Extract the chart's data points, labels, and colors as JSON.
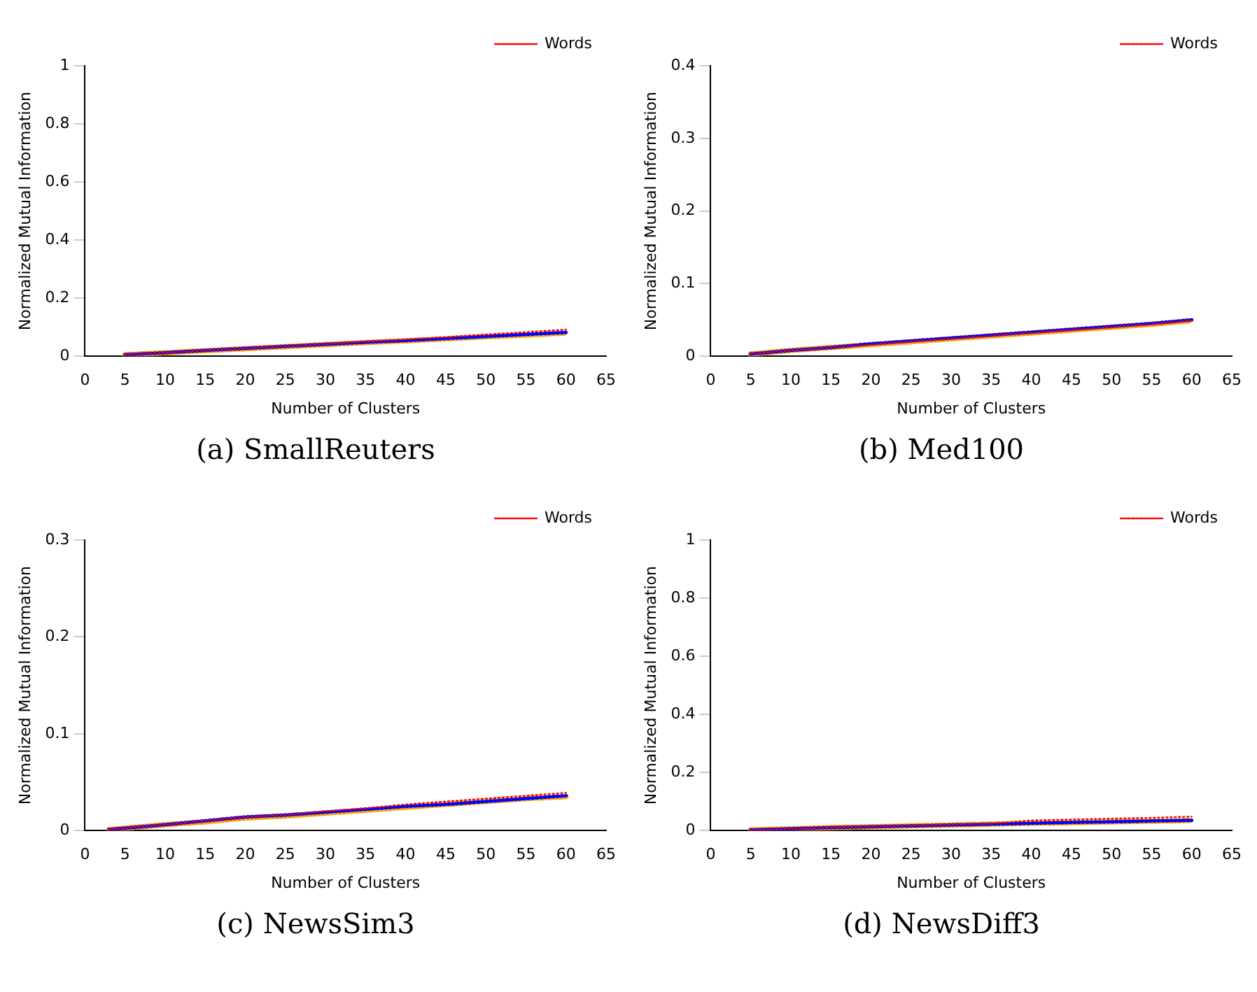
{
  "chart_data": [
    {
      "type": "line",
      "title": "(a) SmallReuters",
      "xlabel": "Number of Clusters",
      "ylabel": "Normalized Mutual Information",
      "xlim": [
        0,
        65
      ],
      "xticks": [
        0,
        5,
        10,
        15,
        20,
        25,
        30,
        35,
        40,
        45,
        50,
        55,
        60,
        65
      ],
      "ylim": [
        0,
        1
      ],
      "yticks": [
        0,
        0.2,
        0.4,
        0.6,
        0.8,
        1
      ],
      "grid": false,
      "legend": "top right",
      "marker": "none",
      "x": [
        5,
        10,
        15,
        20,
        25,
        30,
        35,
        40,
        45,
        50,
        55,
        60
      ],
      "series": [
        {
          "name": "Words",
          "color": "#ff0000",
          "line_style": "dotted",
          "values": [
            0.005,
            0.012,
            0.02,
            0.027,
            0.034,
            0.042,
            0.05,
            0.058,
            0.066,
            0.075,
            0.083,
            0.092
          ]
        },
        {
          "color": "#0000ff",
          "line_style": "dotted",
          "values": [
            0.005,
            0.012,
            0.02,
            0.027,
            0.034,
            0.041,
            0.048,
            0.054,
            0.061,
            0.068,
            0.075,
            0.082
          ]
        },
        {
          "color": "#ffa500",
          "line_style": "dashed",
          "values": [
            0.005,
            0.012,
            0.019,
            0.026,
            0.033,
            0.04,
            0.047,
            0.053,
            0.06,
            0.067,
            0.073,
            0.08
          ]
        }
      ]
    },
    {
      "type": "line",
      "title": "(b) Med100",
      "xlabel": "Number of Clusters",
      "ylabel": "Normalized Mutual Information",
      "xlim": [
        0,
        65
      ],
      "xticks": [
        0,
        5,
        10,
        15,
        20,
        25,
        30,
        35,
        40,
        45,
        50,
        55,
        60,
        65
      ],
      "ylim": [
        0,
        0.4
      ],
      "yticks": [
        0,
        0.1,
        0.2,
        0.3,
        0.4
      ],
      "grid": false,
      "legend": "top right",
      "marker": "none",
      "x": [
        5,
        10,
        15,
        20,
        25,
        30,
        35,
        40,
        45,
        50,
        55,
        60
      ],
      "series": [
        {
          "name": "Words",
          "color": "#ff0000",
          "line_style": "dotted",
          "values": [
            0.003,
            0.008,
            0.012,
            0.016,
            0.02,
            0.024,
            0.028,
            0.032,
            0.036,
            0.04,
            0.044,
            0.049
          ]
        },
        {
          "color": "#0000ff",
          "line_style": "dotted",
          "values": [
            0.003,
            0.008,
            0.012,
            0.017,
            0.021,
            0.025,
            0.029,
            0.033,
            0.037,
            0.041,
            0.045,
            0.05
          ]
        },
        {
          "color": "#ffa500",
          "line_style": "dashed",
          "values": [
            0.003,
            0.008,
            0.012,
            0.016,
            0.02,
            0.024,
            0.028,
            0.032,
            0.036,
            0.04,
            0.044,
            0.049
          ]
        }
      ]
    },
    {
      "type": "line",
      "title": "(c) NewsSim3",
      "xlabel": "Number of Clusters",
      "ylabel": "Normalized Mutual Information",
      "xlim": [
        0,
        65
      ],
      "xticks": [
        0,
        5,
        10,
        15,
        20,
        25,
        30,
        35,
        40,
        45,
        50,
        55,
        60,
        65
      ],
      "ylim": [
        0,
        0.3
      ],
      "yticks": [
        0,
        0.1,
        0.2,
        0.3
      ],
      "grid": false,
      "legend": "top right",
      "marker": "none",
      "x": [
        3,
        10,
        15,
        20,
        25,
        30,
        35,
        40,
        45,
        50,
        55,
        60
      ],
      "series": [
        {
          "name": "Words",
          "color": "#ff0000",
          "line_style": "dotted",
          "values": [
            0.001,
            0.006,
            0.01,
            0.014,
            0.016,
            0.02,
            0.023,
            0.027,
            0.03,
            0.033,
            0.036,
            0.039
          ]
        },
        {
          "color": "#0000ff",
          "line_style": "dotted",
          "values": [
            0.001,
            0.006,
            0.01,
            0.014,
            0.016,
            0.019,
            0.022,
            0.025,
            0.027,
            0.03,
            0.033,
            0.036
          ]
        },
        {
          "color": "#ffa500",
          "line_style": "dashed",
          "values": [
            0.001,
            0.006,
            0.009,
            0.013,
            0.015,
            0.018,
            0.021,
            0.024,
            0.027,
            0.03,
            0.033,
            0.035
          ]
        }
      ]
    },
    {
      "type": "line",
      "title": "(d) NewsDiff3",
      "xlabel": "Number of Clusters",
      "ylabel": "Normalized Mutual Information",
      "xlim": [
        0,
        65
      ],
      "xticks": [
        0,
        5,
        10,
        15,
        20,
        25,
        30,
        35,
        40,
        45,
        50,
        55,
        60,
        65
      ],
      "ylim": [
        0,
        1
      ],
      "yticks": [
        0,
        0.2,
        0.4,
        0.6,
        0.8,
        1
      ],
      "grid": false,
      "legend": "top right",
      "marker": "none",
      "x": [
        5,
        10,
        15,
        20,
        25,
        30,
        35,
        40,
        45,
        50,
        55,
        60
      ],
      "series": [
        {
          "name": "Words",
          "color": "#ff0000",
          "line_style": "dotted",
          "values": [
            0.002,
            0.006,
            0.01,
            0.014,
            0.017,
            0.02,
            0.024,
            0.035,
            0.038,
            0.041,
            0.044,
            0.048
          ]
        },
        {
          "color": "#0000ff",
          "line_style": "dotted",
          "values": [
            0.002,
            0.006,
            0.01,
            0.013,
            0.016,
            0.019,
            0.022,
            0.025,
            0.028,
            0.03,
            0.033,
            0.035
          ]
        },
        {
          "color": "#ffa500",
          "line_style": "dashed",
          "values": [
            0.002,
            0.006,
            0.01,
            0.013,
            0.016,
            0.019,
            0.022,
            0.025,
            0.027,
            0.03,
            0.032,
            0.035
          ]
        }
      ]
    }
  ]
}
